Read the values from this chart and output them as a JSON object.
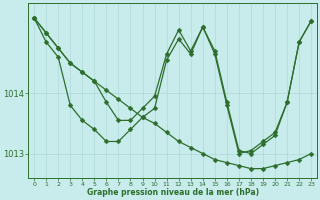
{
  "title": "Graphe pression niveau de la mer (hPa)",
  "background_color": "#c8ecec",
  "grid_color": "#b0d8d8",
  "line_color": "#2d6e2d",
  "xlim": [
    -0.5,
    23.5
  ],
  "ylim": [
    1012.6,
    1015.5
  ],
  "yticks": [
    1013,
    1014
  ],
  "xticks": [
    0,
    1,
    2,
    3,
    4,
    5,
    6,
    7,
    8,
    9,
    10,
    11,
    12,
    13,
    14,
    15,
    16,
    17,
    18,
    19,
    20,
    21,
    22,
    23
  ],
  "s1_x": [
    0,
    1,
    2,
    3,
    4,
    5,
    6,
    7,
    8,
    9,
    10,
    11,
    12,
    13,
    14,
    15,
    16,
    17,
    18,
    19,
    20,
    21,
    22,
    23
  ],
  "s1_y": [
    1015.25,
    1015.0,
    1014.75,
    1014.5,
    1014.35,
    1014.2,
    1014.05,
    1013.9,
    1013.75,
    1013.6,
    1013.5,
    1013.35,
    1013.2,
    1013.1,
    1013.0,
    1012.9,
    1012.85,
    1012.8,
    1012.75,
    1012.75,
    1012.8,
    1012.85,
    1012.9,
    1013.0
  ],
  "s2_x": [
    0,
    1,
    2,
    3,
    4,
    5,
    6,
    7,
    8,
    9,
    10,
    11,
    12,
    13,
    14,
    15,
    16,
    17,
    18,
    19,
    20,
    21,
    22,
    23
  ],
  "s2_y": [
    1015.25,
    1014.85,
    1014.6,
    1013.8,
    1013.55,
    1013.4,
    1013.2,
    1013.2,
    1013.4,
    1013.6,
    1013.75,
    1014.55,
    1014.9,
    1014.65,
    1015.1,
    1014.7,
    1013.85,
    1013.05,
    1013.0,
    1013.15,
    1013.3,
    1013.85,
    1014.85,
    1015.2
  ],
  "s3_x": [
    0,
    1,
    2,
    3,
    4,
    5,
    6,
    7,
    8,
    9,
    10,
    11,
    12,
    13,
    14,
    15,
    16,
    17,
    18,
    19,
    20,
    21,
    22,
    23
  ],
  "s3_y": [
    1015.25,
    1015.0,
    1014.75,
    1014.5,
    1014.35,
    1014.2,
    1013.85,
    1013.55,
    1013.55,
    1013.75,
    1013.95,
    1014.65,
    1015.05,
    1014.7,
    1015.1,
    1014.65,
    1013.8,
    1013.0,
    1013.05,
    1013.2,
    1013.35,
    1013.85,
    1014.85,
    1015.2
  ]
}
